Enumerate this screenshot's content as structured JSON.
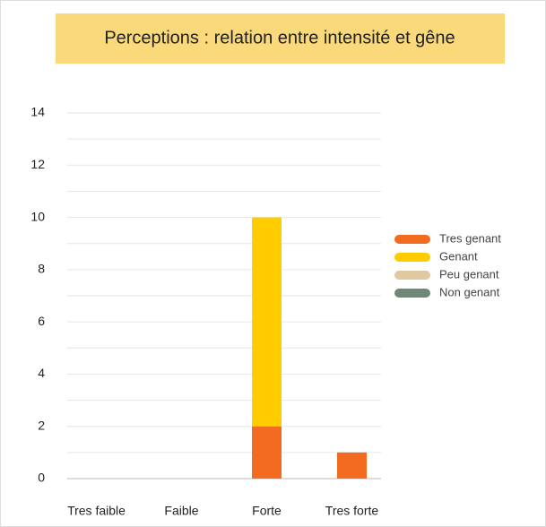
{
  "chart_data": {
    "type": "bar",
    "stacked": true,
    "title": "Perceptions : relation entre intensité et gêne",
    "categories": [
      "Tres faible",
      "Faible",
      "Forte",
      "Tres forte"
    ],
    "series": [
      {
        "name": "Tres genant",
        "color": "#f26b21",
        "values": [
          0,
          0,
          2,
          1
        ]
      },
      {
        "name": "Genant",
        "color": "#ffcc00",
        "values": [
          0,
          0,
          8,
          0
        ]
      },
      {
        "name": "Peu genant",
        "color": "#e0c9a0",
        "values": [
          0,
          0,
          0,
          0
        ]
      },
      {
        "name": "Non genant",
        "color": "#708878",
        "values": [
          0,
          0,
          0,
          0
        ]
      }
    ],
    "ylim": [
      0,
      14
    ],
    "yticks": [
      0,
      2,
      4,
      6,
      8,
      10,
      12,
      14
    ],
    "grid": true,
    "legend": "right"
  }
}
